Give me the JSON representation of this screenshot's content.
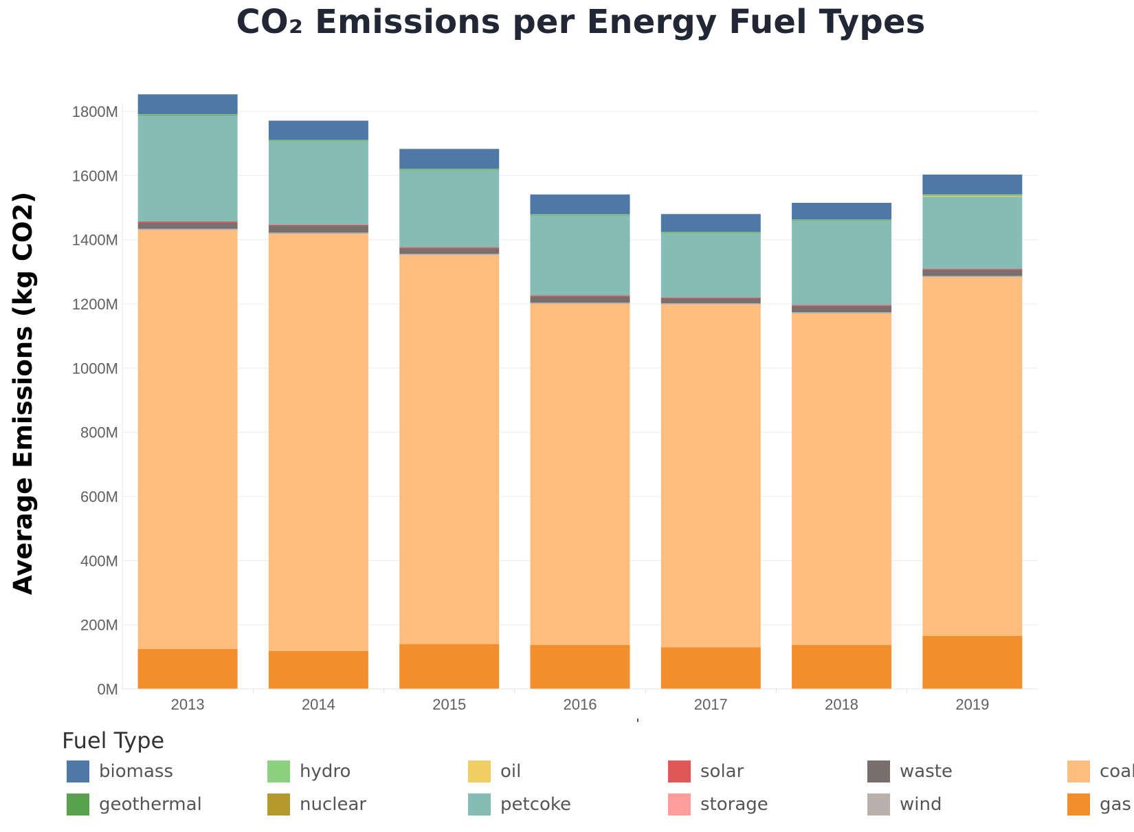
{
  "chart_data": {
    "type": "bar",
    "stacked": true,
    "title": "CO₂ Emissions per Energy Fuel Types",
    "ylabel": "Average Emissions (kg CO2)",
    "xlabel": "",
    "categories": [
      "2013",
      "2014",
      "2015",
      "2016",
      "2017",
      "2018",
      "2019"
    ],
    "ylim": [
      0,
      1800
    ],
    "yticks": [
      0,
      200,
      400,
      600,
      800,
      1000,
      1200,
      1400,
      1600,
      1800
    ],
    "ytick_labels": [
      "0M",
      "200M",
      "400M",
      "600M",
      "800M",
      "1000M",
      "1200M",
      "1400M",
      "1600M",
      "1800M"
    ],
    "grid": true,
    "legend_title": "Fuel Type",
    "legend_position": "bottom",
    "legend": [
      "biomass",
      "hydro",
      "oil",
      "solar",
      "waste",
      "coal",
      "geothermal",
      "nuclear",
      "petcoke",
      "storage",
      "wind",
      "gas"
    ],
    "series": [
      {
        "name": "gas",
        "color": "#f28e2b",
        "values": [
          125,
          118,
          140,
          137,
          130,
          137,
          165
        ]
      },
      {
        "name": "coal",
        "color": "#ffbe7d",
        "values": [
          1305,
          1300,
          1212,
          1063,
          1068,
          1033,
          1118
        ]
      },
      {
        "name": "wind",
        "color": "#bab0ac",
        "values": [
          4,
          4,
          4,
          4,
          4,
          4,
          4
        ]
      },
      {
        "name": "waste",
        "color": "#79706e",
        "values": [
          20,
          22,
          18,
          20,
          15,
          20,
          19
        ]
      },
      {
        "name": "storage",
        "color": "#ff9d9a",
        "values": [
          0,
          0,
          0,
          0,
          0,
          0,
          0
        ]
      },
      {
        "name": "solar",
        "color": "#e15759",
        "values": [
          3,
          3,
          3,
          3,
          3,
          3,
          3
        ]
      },
      {
        "name": "petcoke",
        "color": "#86bcb6",
        "values": [
          330,
          260,
          240,
          248,
          200,
          262,
          225
        ]
      },
      {
        "name": "nuclear",
        "color": "#b6992d",
        "values": [
          0,
          0,
          0,
          0,
          0,
          0,
          0
        ]
      },
      {
        "name": "oil",
        "color": "#f1ce63",
        "values": [
          0,
          0,
          0,
          0,
          0,
          0,
          3
        ]
      },
      {
        "name": "geothermal",
        "color": "#59a14f",
        "values": [
          2,
          2,
          2,
          2,
          2,
          2,
          2
        ]
      },
      {
        "name": "hydro",
        "color": "#8cd17d",
        "values": [
          2,
          2,
          2,
          2,
          2,
          2,
          2
        ]
      },
      {
        "name": "biomass",
        "color": "#4e79a7",
        "values": [
          62,
          60,
          62,
          62,
          56,
          52,
          62
        ]
      }
    ]
  }
}
